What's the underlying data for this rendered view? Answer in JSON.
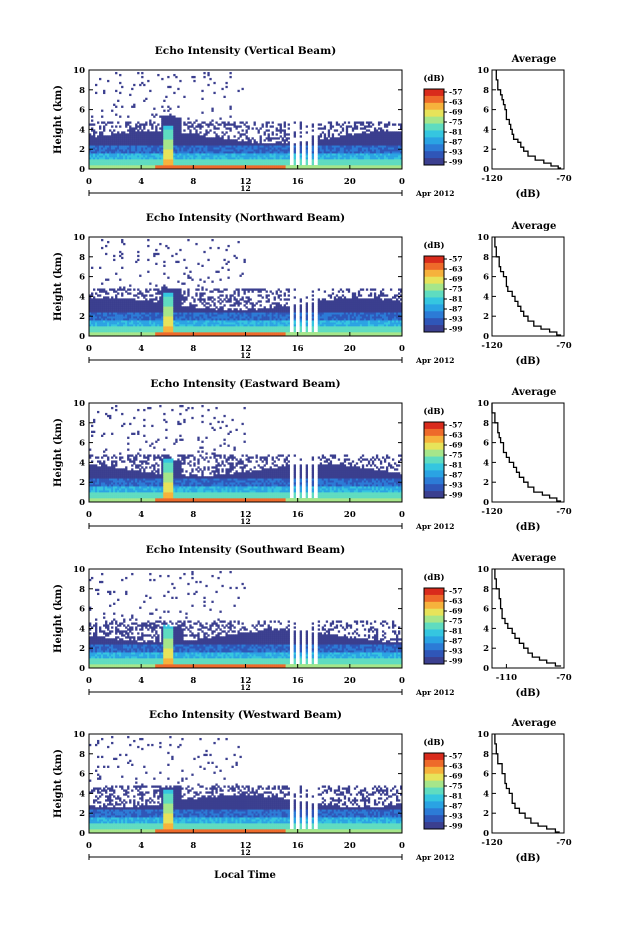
{
  "footer": {
    "xlabel": "Local Time"
  },
  "colors": {
    "colormap": [
      "#3b3f8f",
      "#2f56b8",
      "#2c7bd6",
      "#2aa3e3",
      "#35c6e0",
      "#5fdcc0",
      "#a6e68a",
      "#e7e35a",
      "#f6b23c",
      "#ee6a2a",
      "#d92b1c"
    ]
  },
  "chart_data": [
    {
      "type": "heatmap",
      "title": "Echo Intensity (Vertical Beam)",
      "ylabel": "Height (km)",
      "ylim": [
        0,
        10
      ],
      "yticks": [
        "0",
        "2",
        "4",
        "6",
        "8",
        "10"
      ],
      "xlim": [
        0,
        24
      ],
      "xticks": [
        "0",
        "4",
        "8",
        "12",
        "16",
        "20",
        "0"
      ],
      "date_center": "12",
      "date_right": "Apr 2012",
      "colorbar": {
        "unit": "(dB)",
        "labels": [
          "-57",
          "-63",
          "-69",
          "-75",
          "-81",
          "-87",
          "-93",
          "-99"
        ]
      },
      "average": {
        "title": "Average",
        "xlabel": "(dB)",
        "xticks": [
          "-120",
          "-70"
        ],
        "xlim": [
          -120,
          -70
        ],
        "ylim": [
          0,
          10
        ],
        "profile": [
          [
            -117,
            10
          ],
          [
            -116,
            9
          ],
          [
            -114,
            8
          ],
          [
            -113,
            7.5
          ],
          [
            -112,
            7
          ],
          [
            -111,
            6.5
          ],
          [
            -110,
            6
          ],
          [
            -108,
            5
          ],
          [
            -107,
            4.5
          ],
          [
            -106,
            4
          ],
          [
            -105,
            3.5
          ],
          [
            -102,
            3
          ],
          [
            -100,
            2.7
          ],
          [
            -98,
            2.2
          ],
          [
            -95,
            1.8
          ],
          [
            -90,
            1.3
          ],
          [
            -84,
            0.9
          ],
          [
            -79,
            0.6
          ],
          [
            -74,
            0.3
          ],
          [
            -72,
            0.1
          ]
        ]
      }
    },
    {
      "type": "heatmap",
      "title": "Echo Intensity (Northward Beam)",
      "ylabel": "Height (km)",
      "ylim": [
        0,
        10
      ],
      "yticks": [
        "0",
        "2",
        "4",
        "6",
        "8",
        "10"
      ],
      "xlim": [
        0,
        24
      ],
      "xticks": [
        "0",
        "4",
        "8",
        "12",
        "16",
        "20",
        "0"
      ],
      "date_center": "12",
      "date_right": "Apr 2012",
      "colorbar": {
        "unit": "(dB)",
        "labels": [
          "-57",
          "-63",
          "-69",
          "-75",
          "-81",
          "-87",
          "-93",
          "-99"
        ]
      },
      "average": {
        "title": "Average",
        "xlabel": "(dB)",
        "xticks": [
          "-120",
          "-70"
        ],
        "xlim": [
          -120,
          -70
        ],
        "ylim": [
          0,
          10
        ],
        "profile": [
          [
            -118,
            10
          ],
          [
            -117,
            9
          ],
          [
            -115,
            8
          ],
          [
            -114,
            7
          ],
          [
            -112,
            6.5
          ],
          [
            -110,
            6
          ],
          [
            -109,
            5
          ],
          [
            -106,
            4.5
          ],
          [
            -104,
            4
          ],
          [
            -102,
            3.5
          ],
          [
            -100,
            3
          ],
          [
            -98,
            2.5
          ],
          [
            -95,
            2
          ],
          [
            -91,
            1.5
          ],
          [
            -86,
            1
          ],
          [
            -80,
            0.7
          ],
          [
            -75,
            0.4
          ],
          [
            -72,
            0.1
          ]
        ]
      }
    },
    {
      "type": "heatmap",
      "title": "Echo Intensity (Eastward Beam)",
      "ylabel": "Height (km)",
      "ylim": [
        0,
        10
      ],
      "yticks": [
        "0",
        "2",
        "4",
        "6",
        "8",
        "10"
      ],
      "xlim": [
        0,
        24
      ],
      "xticks": [
        "0",
        "4",
        "8",
        "12",
        "16",
        "20",
        "0"
      ],
      "date_center": "12",
      "date_right": "Apr 2012",
      "colorbar": {
        "unit": "(dB)",
        "labels": [
          "-57",
          "-63",
          "-69",
          "-75",
          "-81",
          "-87",
          "-93",
          "-99"
        ]
      },
      "average": {
        "title": "Average",
        "xlabel": "(dB)",
        "xticks": [
          "-120",
          "-70"
        ],
        "xlim": [
          -120,
          -70
        ],
        "ylim": [
          0,
          10
        ],
        "profile": [
          [
            -120,
            10
          ],
          [
            -118,
            9
          ],
          [
            -116,
            8
          ],
          [
            -115,
            7
          ],
          [
            -114,
            6.5
          ],
          [
            -112,
            6
          ],
          [
            -110,
            5
          ],
          [
            -108,
            4.5
          ],
          [
            -105,
            4
          ],
          [
            -103,
            3.5
          ],
          [
            -101,
            3
          ],
          [
            -98,
            2.5
          ],
          [
            -95,
            2
          ],
          [
            -91,
            1.5
          ],
          [
            -85,
            1
          ],
          [
            -80,
            0.7
          ],
          [
            -75,
            0.4
          ],
          [
            -72,
            0.1
          ]
        ]
      }
    },
    {
      "type": "heatmap",
      "title": "Echo Intensity (Southward Beam)",
      "ylabel": "Height (km)",
      "ylim": [
        0,
        10
      ],
      "yticks": [
        "0",
        "2",
        "4",
        "6",
        "8",
        "10"
      ],
      "xlim": [
        0,
        24
      ],
      "xticks": [
        "0",
        "4",
        "8",
        "12",
        "16",
        "20",
        "0"
      ],
      "date_center": "12",
      "date_right": "Apr 2012",
      "colorbar": {
        "unit": "(dB)",
        "labels": [
          "-57",
          "-63",
          "-69",
          "-75",
          "-81",
          "-87",
          "-93",
          "-99"
        ]
      },
      "average": {
        "title": "Average",
        "xlabel": "(dB)",
        "xticks": [
          "-110",
          "-70"
        ],
        "xlim": [
          -120,
          -70
        ],
        "ylim": [
          0,
          10
        ],
        "profile": [
          [
            -118,
            10
          ],
          [
            -117,
            9
          ],
          [
            -115,
            8
          ],
          [
            -114,
            7
          ],
          [
            -113,
            6
          ],
          [
            -111,
            5
          ],
          [
            -109,
            4.5
          ],
          [
            -106,
            4
          ],
          [
            -104,
            3.5
          ],
          [
            -101,
            3
          ],
          [
            -98,
            2.5
          ],
          [
            -95,
            2
          ],
          [
            -92,
            1.5
          ],
          [
            -87,
            1.1
          ],
          [
            -82,
            0.8
          ],
          [
            -76,
            0.5
          ],
          [
            -72,
            0.2
          ]
        ]
      }
    },
    {
      "type": "heatmap",
      "title": "Echo Intensity (Westward Beam)",
      "ylabel": "Height (km)",
      "ylim": [
        0,
        10
      ],
      "yticks": [
        "0",
        "2",
        "4",
        "6",
        "8",
        "10"
      ],
      "xlim": [
        0,
        24
      ],
      "xticks": [
        "0",
        "4",
        "8",
        "12",
        "16",
        "20",
        "0"
      ],
      "date_center": "12",
      "date_right": "Apr 2012",
      "colorbar": {
        "unit": "(dB)",
        "labels": [
          "-57",
          "-63",
          "-69",
          "-75",
          "-81",
          "-87",
          "-93",
          "-99"
        ]
      },
      "average": {
        "title": "Average",
        "xlabel": "(dB)",
        "xticks": [
          "-120",
          "-70"
        ],
        "xlim": [
          -120,
          -70
        ],
        "ylim": [
          0,
          10
        ],
        "profile": [
          [
            -118,
            10
          ],
          [
            -117,
            9
          ],
          [
            -116,
            8
          ],
          [
            -113,
            7
          ],
          [
            -111,
            6
          ],
          [
            -110,
            5
          ],
          [
            -108,
            4.5
          ],
          [
            -106,
            4
          ],
          [
            -104,
            3
          ],
          [
            -101,
            2.5
          ],
          [
            -97,
            2
          ],
          [
            -93,
            1.5
          ],
          [
            -88,
            1
          ],
          [
            -82,
            0.7
          ],
          [
            -76,
            0.4
          ],
          [
            -73,
            0.1
          ]
        ]
      }
    }
  ]
}
